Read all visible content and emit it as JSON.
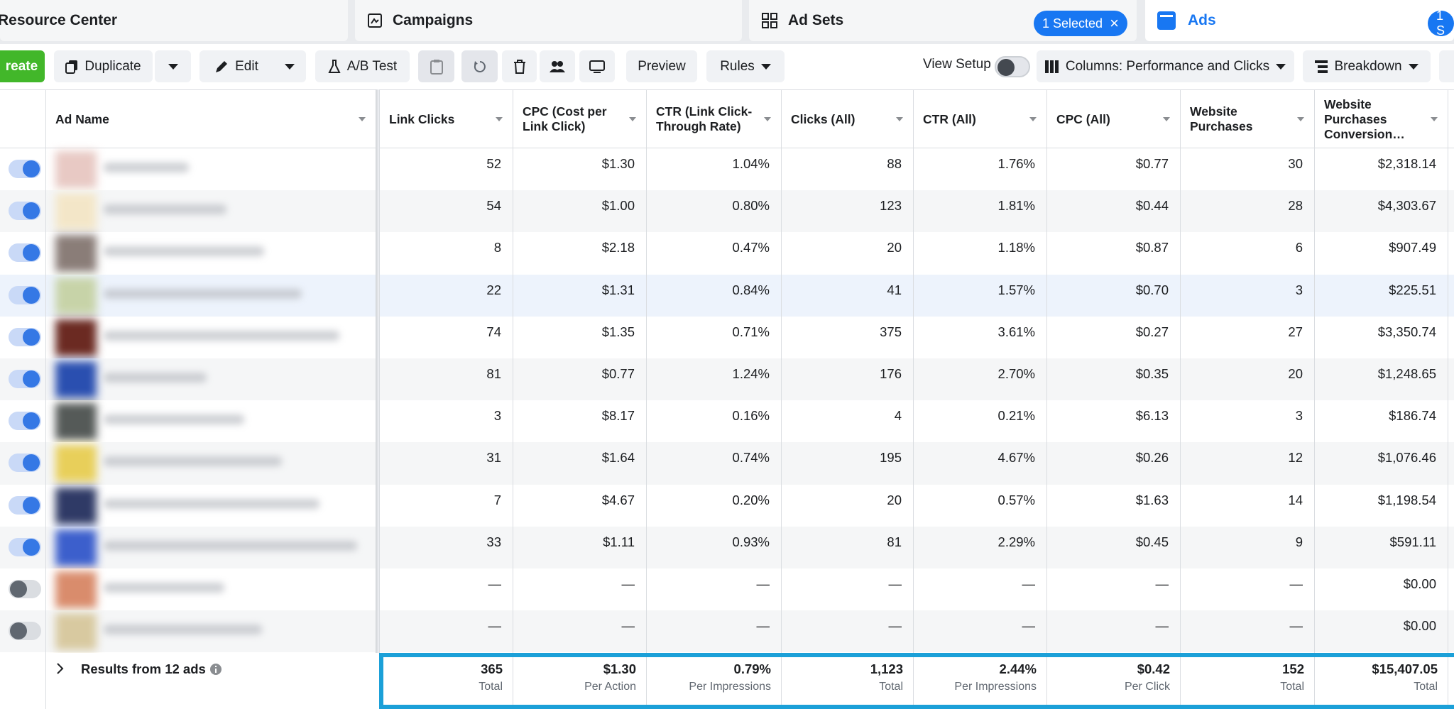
{
  "tabs": {
    "resource_center": "Resource Center",
    "campaigns": "Campaigns",
    "ad_sets": "Ad Sets",
    "selected_badge": "1 Selected",
    "ads": "Ads",
    "right_badge": "1 S"
  },
  "toolbar": {
    "create": "reate",
    "duplicate": "Duplicate",
    "edit": "Edit",
    "ab_test": "A/B Test",
    "preview": "Preview",
    "rules": "Rules",
    "view_setup": "View Setup",
    "columns": "Columns: Performance and Clicks",
    "breakdown": "Breakdown"
  },
  "table": {
    "name_column": "Ad Name",
    "columns": [
      "Link Clicks",
      "CPC (Cost per Link Click)",
      "CTR (Link Click-Through Rate)",
      "Clicks (All)",
      "CTR (All)",
      "CPC (All)",
      "Website Purchases",
      "Website Purchases Conversion…"
    ],
    "rows": [
      {
        "active": true,
        "values": [
          "52",
          "$1.30",
          "1.04%",
          "88",
          "1.76%",
          "$0.77",
          "30",
          "$2,318.14"
        ]
      },
      {
        "active": true,
        "values": [
          "54",
          "$1.00",
          "0.80%",
          "123",
          "1.81%",
          "$0.44",
          "28",
          "$4,303.67"
        ]
      },
      {
        "active": true,
        "values": [
          "8",
          "$2.18",
          "0.47%",
          "20",
          "1.18%",
          "$0.87",
          "6",
          "$907.49"
        ]
      },
      {
        "active": true,
        "values": [
          "22",
          "$1.31",
          "0.84%",
          "41",
          "1.57%",
          "$0.70",
          "3",
          "$225.51"
        ]
      },
      {
        "active": true,
        "values": [
          "74",
          "$1.35",
          "0.71%",
          "375",
          "3.61%",
          "$0.27",
          "27",
          "$3,350.74"
        ]
      },
      {
        "active": true,
        "values": [
          "81",
          "$0.77",
          "1.24%",
          "176",
          "2.70%",
          "$0.35",
          "20",
          "$1,248.65"
        ]
      },
      {
        "active": true,
        "values": [
          "3",
          "$8.17",
          "0.16%",
          "4",
          "0.21%",
          "$6.13",
          "3",
          "$186.74"
        ]
      },
      {
        "active": true,
        "values": [
          "31",
          "$1.64",
          "0.74%",
          "195",
          "4.67%",
          "$0.26",
          "12",
          "$1,076.46"
        ]
      },
      {
        "active": true,
        "values": [
          "7",
          "$4.67",
          "0.20%",
          "20",
          "0.57%",
          "$1.63",
          "14",
          "$1,198.54"
        ]
      },
      {
        "active": true,
        "values": [
          "33",
          "$1.11",
          "0.93%",
          "81",
          "2.29%",
          "$0.45",
          "9",
          "$591.11"
        ]
      },
      {
        "active": false,
        "values": [
          "—",
          "—",
          "—",
          "—",
          "—",
          "—",
          "—",
          "$0.00"
        ]
      },
      {
        "active": false,
        "values": [
          "—",
          "—",
          "—",
          "—",
          "—",
          "—",
          "—",
          "$0.00"
        ]
      }
    ],
    "totals_title": "Results from 12 ads",
    "totals": [
      {
        "value": "365",
        "label": "Total"
      },
      {
        "value": "$1.30",
        "label": "Per Action"
      },
      {
        "value": "0.79%",
        "label": "Per Impressions"
      },
      {
        "value": "1,123",
        "label": "Total"
      },
      {
        "value": "2.44%",
        "label": "Per Impressions"
      },
      {
        "value": "$0.42",
        "label": "Per Click"
      },
      {
        "value": "152",
        "label": "Total"
      },
      {
        "value": "$15,407.05",
        "label": "Total"
      }
    ]
  }
}
